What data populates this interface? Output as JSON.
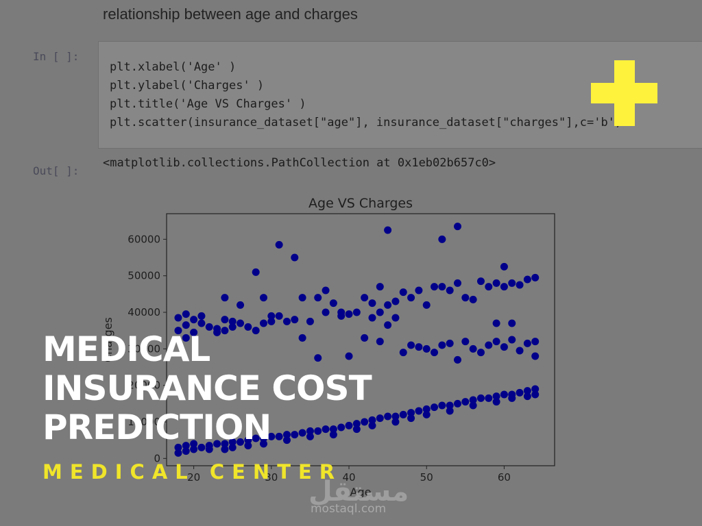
{
  "notebook": {
    "heading": "relationship between age and charges",
    "in_prompt": "In [ ]:",
    "out_prompt": "Out[ ]:",
    "code_lines": [
      "plt.xlabel('Age' )",
      "plt.ylabel('Charges' )",
      "plt.title('Age VS Charges' )",
      "plt.scatter(insurance_dataset[\"age\"], insurance_dataset[\"charges\"],c='b')"
    ],
    "output_text": "<matplotlib.collections.PathCollection at 0x1eb02b657c0>"
  },
  "overlay": {
    "title_lines": [
      "MEDICAL",
      "INSURANCE COST",
      "PREDICTION"
    ],
    "subtitle": "MEDICAL CENTER",
    "title_color": "#ffffff",
    "subtitle_color": "#f0e52a",
    "plus_icon": "plus-icon",
    "plus_color": "#fff23d"
  },
  "watermark": {
    "arabic": "مستقل",
    "latin": "mostaql.com"
  },
  "chart_data": {
    "type": "scatter",
    "title": "Age VS Charges",
    "xlabel": "Age",
    "ylabel": "Charges",
    "xlim": [
      16.5,
      66.5
    ],
    "ylim": [
      -2000,
      67000
    ],
    "xticks": [
      20,
      30,
      40,
      50,
      60
    ],
    "yticks": [
      0,
      10000,
      20000,
      30000,
      40000,
      50000,
      60000
    ],
    "marker_color": "#00008b",
    "points": [
      [
        18,
        1500
      ],
      [
        18,
        3000
      ],
      [
        18,
        38500
      ],
      [
        18,
        35000
      ],
      [
        19,
        2000
      ],
      [
        19,
        3500
      ],
      [
        19,
        39500
      ],
      [
        19,
        36500
      ],
      [
        19,
        33000
      ],
      [
        20,
        2500
      ],
      [
        20,
        4000
      ],
      [
        20,
        38000
      ],
      [
        20,
        34500
      ],
      [
        21,
        3000
      ],
      [
        21,
        39000
      ],
      [
        21,
        37000
      ],
      [
        22,
        3500
      ],
      [
        22,
        2500
      ],
      [
        22,
        36000
      ],
      [
        23,
        4000
      ],
      [
        23,
        35500
      ],
      [
        23,
        34500
      ],
      [
        24,
        4000
      ],
      [
        24,
        2500
      ],
      [
        24,
        44000
      ],
      [
        24,
        38000
      ],
      [
        24,
        35000
      ],
      [
        25,
        4500
      ],
      [
        25,
        3000
      ],
      [
        25,
        37500
      ],
      [
        25,
        36000
      ],
      [
        26,
        4500
      ],
      [
        26,
        42000
      ],
      [
        26,
        37000
      ],
      [
        27,
        5000
      ],
      [
        27,
        3500
      ],
      [
        27,
        36000
      ],
      [
        28,
        5500
      ],
      [
        28,
        51000
      ],
      [
        28,
        35000
      ],
      [
        29,
        5500
      ],
      [
        29,
        4000
      ],
      [
        29,
        44000
      ],
      [
        29,
        37000
      ],
      [
        30,
        6000
      ],
      [
        30,
        39000
      ],
      [
        30,
        37500
      ],
      [
        31,
        6000
      ],
      [
        31,
        58500
      ],
      [
        31,
        39000
      ],
      [
        32,
        6500
      ],
      [
        32,
        5000
      ],
      [
        32,
        37500
      ],
      [
        33,
        6500
      ],
      [
        33,
        55000
      ],
      [
        33,
        38000
      ],
      [
        34,
        7000
      ],
      [
        34,
        44000
      ],
      [
        34,
        33000
      ],
      [
        35,
        7500
      ],
      [
        35,
        6000
      ],
      [
        35,
        37500
      ],
      [
        36,
        7500
      ],
      [
        36,
        44000
      ],
      [
        36,
        27500
      ],
      [
        37,
        8000
      ],
      [
        37,
        46000
      ],
      [
        37,
        40000
      ],
      [
        38,
        8000
      ],
      [
        38,
        6500
      ],
      [
        38,
        42500
      ],
      [
        39,
        8500
      ],
      [
        39,
        40000
      ],
      [
        39,
        39000
      ],
      [
        40,
        9000
      ],
      [
        40,
        39500
      ],
      [
        40,
        28000
      ],
      [
        41,
        9500
      ],
      [
        41,
        8000
      ],
      [
        41,
        40000
      ],
      [
        42,
        10000
      ],
      [
        42,
        44000
      ],
      [
        42,
        33000
      ],
      [
        43,
        10500
      ],
      [
        43,
        9000
      ],
      [
        43,
        42500
      ],
      [
        43,
        38500
      ],
      [
        44,
        11000
      ],
      [
        44,
        47000
      ],
      [
        44,
        40000
      ],
      [
        44,
        32000
      ],
      [
        45,
        11500
      ],
      [
        45,
        62500
      ],
      [
        45,
        42000
      ],
      [
        45,
        36500
      ],
      [
        46,
        11500
      ],
      [
        46,
        10000
      ],
      [
        46,
        43000
      ],
      [
        46,
        38500
      ],
      [
        47,
        12000
      ],
      [
        47,
        45500
      ],
      [
        47,
        29000
      ],
      [
        48,
        12500
      ],
      [
        48,
        11000
      ],
      [
        48,
        44000
      ],
      [
        48,
        31000
      ],
      [
        49,
        13000
      ],
      [
        49,
        46000
      ],
      [
        49,
        30500
      ],
      [
        50,
        13500
      ],
      [
        50,
        12000
      ],
      [
        50,
        42000
      ],
      [
        50,
        30000
      ],
      [
        51,
        14000
      ],
      [
        51,
        47000
      ],
      [
        51,
        29000
      ],
      [
        52,
        14500
      ],
      [
        52,
        60000
      ],
      [
        52,
        47000
      ],
      [
        52,
        31000
      ],
      [
        53,
        14500
      ],
      [
        53,
        13000
      ],
      [
        53,
        46000
      ],
      [
        53,
        31500
      ],
      [
        54,
        15000
      ],
      [
        54,
        63500
      ],
      [
        54,
        48000
      ],
      [
        54,
        27000
      ],
      [
        55,
        15500
      ],
      [
        55,
        44000
      ],
      [
        55,
        32000
      ],
      [
        56,
        16000
      ],
      [
        56,
        14500
      ],
      [
        56,
        43500
      ],
      [
        56,
        30000
      ],
      [
        57,
        16500
      ],
      [
        57,
        48500
      ],
      [
        57,
        29000
      ],
      [
        58,
        16500
      ],
      [
        58,
        47000
      ],
      [
        58,
        31000
      ],
      [
        59,
        17000
      ],
      [
        59,
        15500
      ],
      [
        59,
        48000
      ],
      [
        59,
        37000
      ],
      [
        59,
        32000
      ],
      [
        60,
        17500
      ],
      [
        60,
        52500
      ],
      [
        60,
        47000
      ],
      [
        60,
        30500
      ],
      [
        61,
        17500
      ],
      [
        61,
        16500
      ],
      [
        61,
        48000
      ],
      [
        61,
        37000
      ],
      [
        61,
        32500
      ],
      [
        62,
        18000
      ],
      [
        62,
        47500
      ],
      [
        62,
        29500
      ],
      [
        63,
        18500
      ],
      [
        63,
        17000
      ],
      [
        63,
        49000
      ],
      [
        63,
        31500
      ],
      [
        64,
        19000
      ],
      [
        64,
        17500
      ],
      [
        64,
        49500
      ],
      [
        64,
        32000
      ],
      [
        64,
        28000
      ]
    ]
  }
}
